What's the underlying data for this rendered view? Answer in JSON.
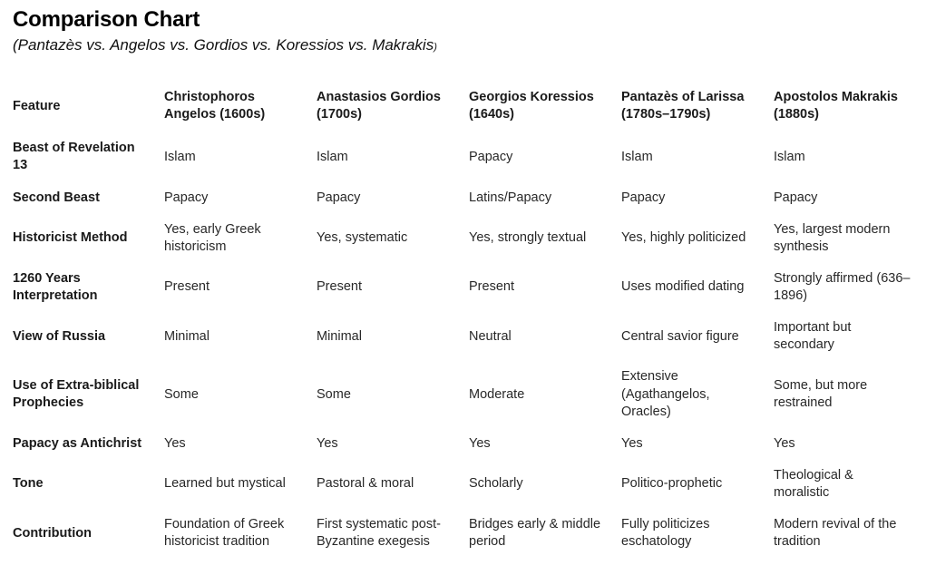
{
  "header": {
    "title": "Comparison Chart",
    "subtitle": "(Pantazès vs. Angelos vs. Gordios vs. Koressios vs. Makrakis",
    "subtitle_close_paren": ")"
  },
  "table": {
    "feature_header": "Feature",
    "columns": [
      "Christophoros Angelos (1600s)",
      "Anastasios Gordios (1700s)",
      "Georgios Koressios (1640s)",
      "Pantazès of Larissa (1780s–1790s)",
      "Apostolos Makrakis (1880s)"
    ],
    "rows": [
      {
        "feature": "Beast of Revelation 13",
        "values": [
          "Islam",
          "Islam",
          "Papacy",
          "Islam",
          "Islam"
        ]
      },
      {
        "feature": "Second Beast",
        "values": [
          "Papacy",
          "Papacy",
          "Latins/Papacy",
          "Papacy",
          "Papacy"
        ]
      },
      {
        "feature": "Historicist Method",
        "values": [
          "Yes, early Greek historicism",
          "Yes, systematic",
          "Yes, strongly textual",
          "Yes, highly politicized",
          "Yes, largest modern synthesis"
        ]
      },
      {
        "feature": "1260 Years Interpretation",
        "values": [
          "Present",
          "Present",
          "Present",
          "Uses modified dating",
          "Strongly affirmed (636–1896)"
        ]
      },
      {
        "feature": "View of Russia",
        "values": [
          "Minimal",
          "Minimal",
          "Neutral",
          "Central savior figure",
          "Important but secondary"
        ]
      },
      {
        "feature": "Use of Extra-biblical Prophecies",
        "values": [
          "Some",
          "Some",
          "Moderate",
          "Extensive (Agathangelos, Oracles)",
          "Some, but more restrained"
        ]
      },
      {
        "feature": "Papacy as Antichrist",
        "values": [
          "Yes",
          "Yes",
          "Yes",
          "Yes",
          "Yes"
        ]
      },
      {
        "feature": "Tone",
        "values": [
          "Learned but mystical",
          "Pastoral & moral",
          "Scholarly",
          "Politico-prophetic",
          "Theological & moralistic"
        ]
      },
      {
        "feature": "Contribution",
        "values": [
          "Foundation of Greek historicist tradition",
          "First systematic post-Byzantine exegesis",
          "Bridges early & middle period",
          "Fully politicizes eschatology",
          "Modern revival of the tradition"
        ]
      }
    ]
  },
  "colors": {
    "background": "#ffffff",
    "title_text": "#000000",
    "body_text": "#282828",
    "label_text": "#1a1a1a"
  }
}
